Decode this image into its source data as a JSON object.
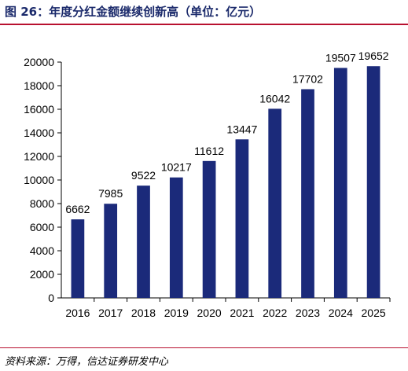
{
  "figure": {
    "title": "图 26：年度分红金额继续创新高（单位：亿元）",
    "source": "资料来源：万得，信达证券研发中心"
  },
  "colors": {
    "bar": "#1b2a7a",
    "title": "#1b2a6b",
    "rule": "#b8102f"
  },
  "chart_data": {
    "type": "bar",
    "categories": [
      "2016",
      "2017",
      "2018",
      "2019",
      "2020",
      "2021",
      "2022",
      "2023",
      "2024",
      "2025"
    ],
    "values": [
      6662,
      7985,
      9522,
      10217,
      11612,
      13447,
      16042,
      17702,
      19507,
      19652
    ],
    "data_labels": [
      "6662",
      "7985",
      "9522",
      "10217",
      "11612",
      "13447",
      "16042",
      "17702",
      "19507",
      "19652"
    ],
    "y_ticks": [
      0,
      2000,
      4000,
      6000,
      8000,
      10000,
      12000,
      14000,
      16000,
      18000,
      20000
    ],
    "ylim": [
      0,
      20000
    ],
    "grid": false,
    "legend": "none"
  }
}
